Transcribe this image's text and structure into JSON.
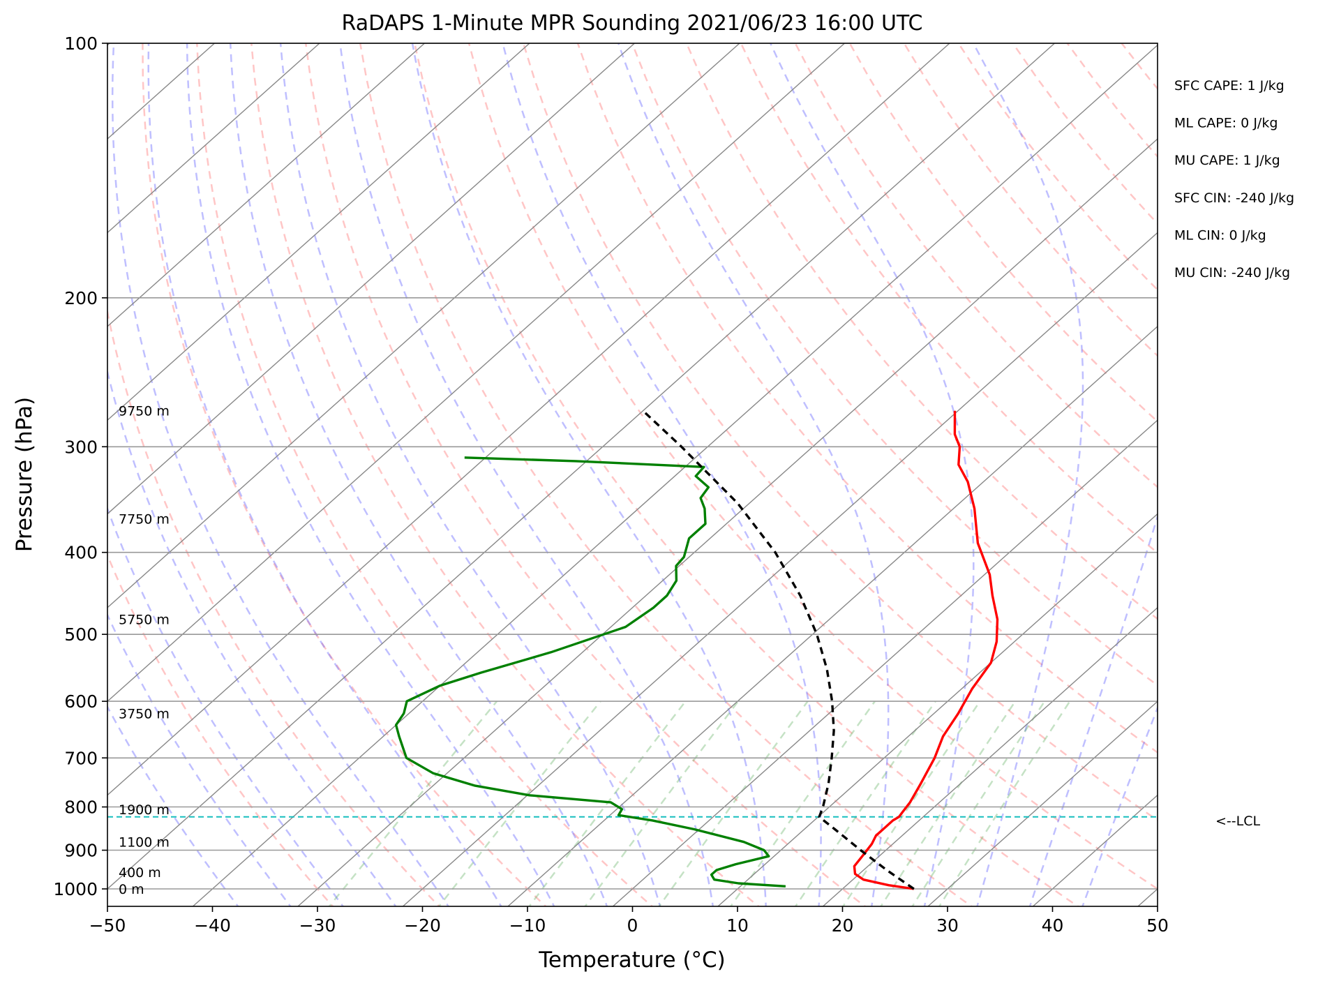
{
  "chart_data": {
    "type": "skew-t log-p sounding",
    "title": "RaDAPS 1-Minute MPR Sounding 2021/06/23 16:00 UTC",
    "xlabel": "Temperature (°C)",
    "ylabel": "Pressure (hPa)",
    "xlim": [
      -50,
      50
    ],
    "ylim_hpa": [
      1050,
      100
    ],
    "x_ticks": [
      -50,
      -40,
      -30,
      -20,
      -10,
      0,
      10,
      20,
      30,
      40,
      50
    ],
    "x_tick_labels": [
      "−50",
      "−40",
      "−30",
      "−20",
      "−10",
      "0",
      "10",
      "20",
      "30",
      "40",
      "50"
    ],
    "y_ticks": [
      1000,
      900,
      800,
      700,
      600,
      500,
      400,
      300,
      200,
      100
    ],
    "y_tick_labels": [
      "1000",
      "900",
      "800",
      "700",
      "600",
      "500",
      "400",
      "300",
      "200",
      "100"
    ],
    "grid": true,
    "height_labels": [
      {
        "text": "0 m",
        "p": 1000
      },
      {
        "text": "400 m",
        "p": 955
      },
      {
        "text": "1100 m",
        "p": 880
      },
      {
        "text": "1900 m",
        "p": 805
      },
      {
        "text": "3750 m",
        "p": 620
      },
      {
        "text": "5750 m",
        "p": 480
      },
      {
        "text": "7750 m",
        "p": 365
      },
      {
        "text": "9750 m",
        "p": 272
      }
    ],
    "indices": [
      "SFC CAPE: 1 J/kg",
      "ML CAPE: 0 J/kg",
      "MU CAPE: 1 J/kg",
      "SFC CIN: -240 J/kg",
      "ML CIN: 0 J/kg",
      "MU CIN: -240 J/kg"
    ],
    "lcl": {
      "label": "<--LCL",
      "p": 822
    },
    "series": [
      {
        "role": "temperature",
        "color": "#ff0000",
        "points": [
          [
            1000,
            26.8
          ],
          [
            990,
            24.0
          ],
          [
            975,
            21.0
          ],
          [
            960,
            19.6
          ],
          [
            940,
            18.7
          ],
          [
            915,
            18.4
          ],
          [
            885,
            18.0
          ],
          [
            865,
            17.5
          ],
          [
            845,
            17.5
          ],
          [
            830,
            17.5
          ],
          [
            822,
            17.7
          ],
          [
            810,
            17.5
          ],
          [
            790,
            17.2
          ],
          [
            750,
            16.2
          ],
          [
            700,
            14.8
          ],
          [
            660,
            13.3
          ],
          [
            620,
            12.3
          ],
          [
            580,
            11.0
          ],
          [
            540,
            10.0
          ],
          [
            510,
            8.3
          ],
          [
            480,
            6.0
          ],
          [
            450,
            3.0
          ],
          [
            425,
            0.5
          ],
          [
            390,
            -4.0
          ],
          [
            355,
            -8.0
          ],
          [
            330,
            -11.5
          ],
          [
            315,
            -14.2
          ],
          [
            300,
            -16.0
          ],
          [
            290,
            -17.8
          ],
          [
            272,
            -20.3
          ]
        ]
      },
      {
        "role": "dewpoint",
        "color": "#008000",
        "points": [
          [
            993,
            14.3
          ],
          [
            985,
            9.5
          ],
          [
            975,
            6.8
          ],
          [
            962,
            6.0
          ],
          [
            950,
            6.0
          ],
          [
            935,
            7.2
          ],
          [
            915,
            9.5
          ],
          [
            900,
            8.4
          ],
          [
            880,
            5.6
          ],
          [
            850,
            -0.5
          ],
          [
            830,
            -5.4
          ],
          [
            818,
            -9.2
          ],
          [
            805,
            -9.5
          ],
          [
            790,
            -11.3
          ],
          [
            775,
            -19.8
          ],
          [
            755,
            -26.0
          ],
          [
            730,
            -31.3
          ],
          [
            700,
            -35.5
          ],
          [
            660,
            -38.5
          ],
          [
            640,
            -40.0
          ],
          [
            620,
            -40.5
          ],
          [
            600,
            -41.5
          ],
          [
            575,
            -40.0
          ],
          [
            555,
            -37.5
          ],
          [
            525,
            -33.0
          ],
          [
            490,
            -28.6
          ],
          [
            465,
            -28.0
          ],
          [
            450,
            -28.0
          ],
          [
            432,
            -28.7
          ],
          [
            415,
            -30.3
          ],
          [
            405,
            -30.5
          ],
          [
            385,
            -32.0
          ],
          [
            370,
            -32.0
          ],
          [
            355,
            -33.7
          ],
          [
            345,
            -35.2
          ],
          [
            335,
            -35.6
          ],
          [
            325,
            -38.0
          ],
          [
            317,
            -38.2
          ],
          [
            312,
            -51.0
          ],
          [
            309,
            -62.0
          ]
        ]
      },
      {
        "role": "parcel",
        "color": "#000000",
        "points": [
          [
            1000,
            26.8
          ],
          [
            950,
            22.2
          ],
          [
            900,
            17.6
          ],
          [
            850,
            12.9
          ],
          [
            822,
            10.1
          ],
          [
            800,
            9.4
          ],
          [
            750,
            7.4
          ],
          [
            700,
            5.0
          ],
          [
            650,
            2.3
          ],
          [
            600,
            -1.0
          ],
          [
            550,
            -4.9
          ],
          [
            500,
            -9.6
          ],
          [
            450,
            -15.3
          ],
          [
            400,
            -22.3
          ],
          [
            350,
            -31.1
          ],
          [
            300,
            -42.5
          ],
          [
            272,
            -50.0
          ]
        ]
      }
    ]
  }
}
